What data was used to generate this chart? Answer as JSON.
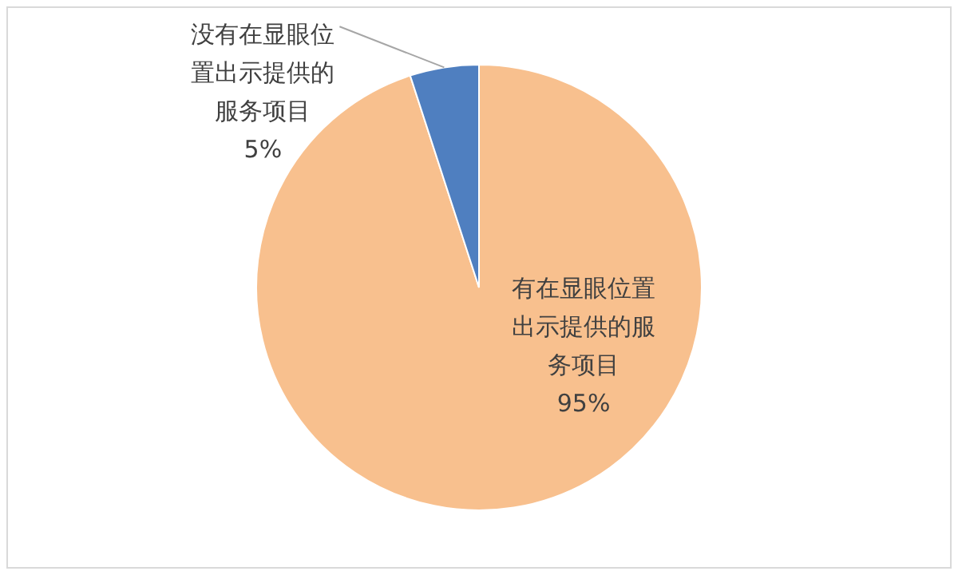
{
  "chart_data": {
    "type": "pie",
    "categories": [
      "有在显眼位置出示提供的服务项目",
      "没有在显眼位置出示提供的服务项目"
    ],
    "values": [
      95,
      5
    ],
    "colors": [
      "#f8c08e",
      "#4f7fc0"
    ],
    "value_labels": [
      "95%",
      "5%"
    ],
    "legend": false
  }
}
